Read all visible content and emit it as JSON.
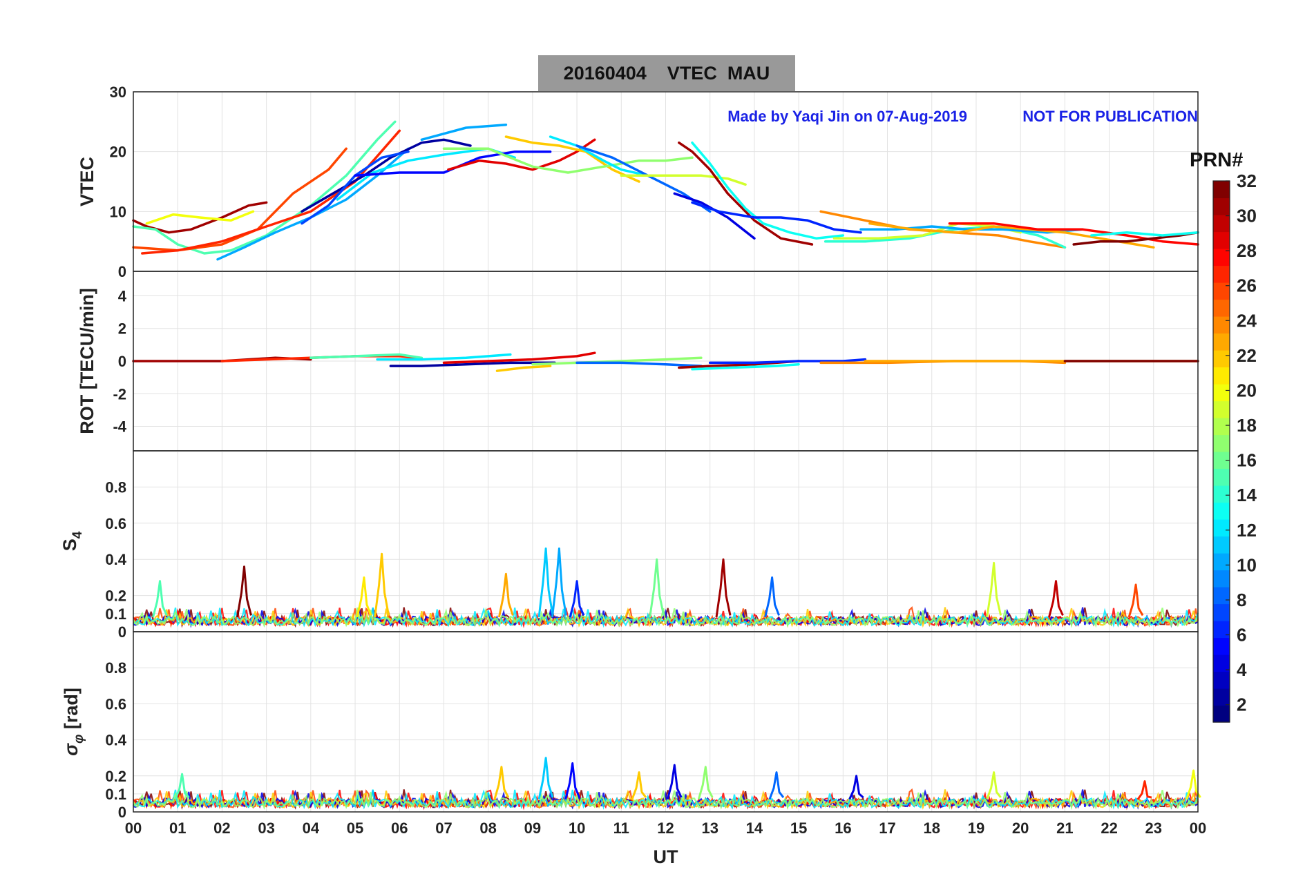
{
  "chart_data": {
    "type": "line",
    "title": "20160404    VTEC  MAU",
    "annotations": {
      "credit": "Made by Yaqi Jin on 07-Aug-2019",
      "notice": "NOT FOR PUBLICATION"
    },
    "xlabel": "UT",
    "x_ticks": [
      "00",
      "01",
      "02",
      "03",
      "04",
      "05",
      "06",
      "07",
      "08",
      "09",
      "10",
      "11",
      "12",
      "13",
      "14",
      "15",
      "16",
      "17",
      "18",
      "19",
      "20",
      "21",
      "22",
      "23",
      "00"
    ],
    "xlim": [
      0,
      24
    ],
    "grid": true,
    "colorbar": {
      "label": "PRN#",
      "range": [
        1,
        32
      ],
      "ticks": [
        "2",
        "4",
        "6",
        "8",
        "10",
        "12",
        "14",
        "16",
        "18",
        "20",
        "22",
        "24",
        "26",
        "28",
        "30",
        "32"
      ],
      "colormap": "jet"
    },
    "panels": [
      {
        "id": "vtec",
        "ylabel": "VTEC",
        "ylim": [
          0,
          30
        ],
        "yticks": [
          "0",
          "10",
          "20",
          "30"
        ],
        "series": [
          {
            "prn": 31,
            "x": [
              0.0,
              0.3,
              0.8,
              1.3,
              2.0,
              2.6,
              3.0
            ],
            "y": [
              8.5,
              7.5,
              6.5,
              7.0,
              9.0,
              11.0,
              11.5
            ]
          },
          {
            "prn": 20,
            "x": [
              0.3,
              0.9,
              1.5,
              2.2,
              2.7
            ],
            "y": [
              8.0,
              9.5,
              9.0,
              8.5,
              10.0
            ]
          },
          {
            "prn": 15,
            "x": [
              0.0,
              0.5,
              1.0,
              1.6,
              2.2,
              3.0,
              4.0,
              4.8,
              5.5,
              5.9
            ],
            "y": [
              7.5,
              7.0,
              4.5,
              3.0,
              3.5,
              6.0,
              11.0,
              16.0,
              22.0,
              25.0
            ]
          },
          {
            "prn": 26,
            "x": [
              0.0,
              1.0,
              2.0,
              2.8,
              3.6,
              4.4,
              4.8
            ],
            "y": [
              4.0,
              3.5,
              4.5,
              7.0,
              13.0,
              17.0,
              20.5
            ]
          },
          {
            "prn": 27,
            "x": [
              0.2,
              1.0,
              2.0,
              3.0,
              4.0,
              5.0,
              6.0
            ],
            "y": [
              3.0,
              3.5,
              5.0,
              7.5,
              10.0,
              15.0,
              23.5
            ]
          },
          {
            "prn": 10,
            "x": [
              1.9,
              2.5,
              3.2,
              4.0,
              4.8,
              5.5,
              6.2
            ],
            "y": [
              2.0,
              4.0,
              6.5,
              9.0,
              12.0,
              16.0,
              20.5
            ]
          },
          {
            "prn": 2,
            "x": [
              3.8,
              4.5,
              5.2,
              5.8,
              6.5,
              7.0,
              7.6
            ],
            "y": [
              10.0,
              13.0,
              16.0,
              19.0,
              21.5,
              22.0,
              21.0
            ]
          },
          {
            "prn": 7,
            "x": [
              3.8,
              4.4,
              5.0,
              5.6,
              6.2
            ],
            "y": [
              8.0,
              11.0,
              16.0,
              19.0,
              20.0
            ]
          },
          {
            "prn": 12,
            "x": [
              4.6,
              5.4,
              6.2,
              7.0,
              8.0,
              8.6
            ],
            "y": [
              12.0,
              16.5,
              18.5,
              19.5,
              20.5,
              19.0
            ]
          },
          {
            "prn": 5,
            "x": [
              5.0,
              6.0,
              7.0,
              7.8,
              8.6,
              9.4
            ],
            "y": [
              16.0,
              16.5,
              16.5,
              19.0,
              20.0,
              20.0
            ]
          },
          {
            "prn": 10,
            "x": [
              6.5,
              7.5,
              8.4
            ],
            "y": [
              22.0,
              24.0,
              24.5
            ]
          },
          {
            "prn": 29,
            "x": [
              7.1,
              7.8,
              8.4,
              9.0,
              9.6,
              10.0,
              10.4
            ],
            "y": [
              17.0,
              18.5,
              18.0,
              17.0,
              18.5,
              20.0,
              22.0
            ]
          },
          {
            "prn": 22,
            "x": [
              8.4,
              9.0,
              9.6,
              10.2,
              10.8,
              11.4
            ],
            "y": [
              22.5,
              21.5,
              21.0,
              20.0,
              17.0,
              15.0
            ]
          },
          {
            "prn": 17,
            "x": [
              7.0,
              8.0,
              9.0,
              9.8,
              10.6,
              11.4,
              12.0,
              12.6
            ],
            "y": [
              20.5,
              20.5,
              17.5,
              16.5,
              17.5,
              18.5,
              18.5,
              19.0
            ]
          },
          {
            "prn": 12,
            "x": [
              9.4,
              10.0,
              10.6,
              11.0,
              11.6
            ],
            "y": [
              22.5,
              21.0,
              18.5,
              17.0,
              16.0
            ]
          },
          {
            "prn": 8,
            "x": [
              10.0,
              10.8,
              11.6,
              12.4,
              13.0
            ],
            "y": [
              21.0,
              19.0,
              16.0,
              13.0,
              10.0
            ]
          },
          {
            "prn": 19,
            "x": [
              11.0,
              12.0,
              12.8,
              13.4,
              13.8
            ],
            "y": [
              16.0,
              16.0,
              16.0,
              15.5,
              14.5
            ]
          },
          {
            "prn": 31,
            "x": [
              12.3,
              12.6,
              13.0,
              13.4,
              14.0,
              14.6,
              15.3
            ],
            "y": [
              21.5,
              20.0,
              17.0,
              13.0,
              8.5,
              5.5,
              4.5
            ]
          },
          {
            "prn": 13,
            "x": [
              12.6,
              13.0,
              13.4,
              13.8,
              14.2,
              14.8,
              15.4,
              16.0
            ],
            "y": [
              21.5,
              18.0,
              14.0,
              10.5,
              8.0,
              6.5,
              5.5,
              6.0
            ]
          },
          {
            "prn": 4,
            "x": [
              12.2,
              12.8,
              13.4,
              14.0
            ],
            "y": [
              13.0,
              11.5,
              9.0,
              5.5
            ]
          },
          {
            "prn": 6,
            "x": [
              12.6,
              13.2,
              14.0,
              14.6,
              15.2,
              15.8,
              16.4
            ],
            "y": [
              11.5,
              10.0,
              9.0,
              9.0,
              8.5,
              7.0,
              6.5
            ]
          },
          {
            "prn": 24,
            "x": [
              15.5,
              16.5,
              17.5,
              18.5,
              19.5,
              20.2,
              21.0
            ],
            "y": [
              10.0,
              8.5,
              7.0,
              6.5,
              6.0,
              5.0,
              4.0
            ]
          },
          {
            "prn": 14,
            "x": [
              15.6,
              16.5,
              17.5,
              18.5,
              19.5,
              20.4,
              21.0
            ],
            "y": [
              5.0,
              5.0,
              5.5,
              7.0,
              7.5,
              6.0,
              4.0
            ]
          },
          {
            "prn": 19,
            "x": [
              15.8,
              16.8,
              17.8,
              18.6,
              19.4,
              20.0
            ],
            "y": [
              5.5,
              5.5,
              6.0,
              8.0,
              7.5,
              6.5
            ]
          },
          {
            "prn": 10,
            "x": [
              16.4,
              17.2,
              18.0,
              18.8,
              19.6,
              20.6,
              21.4
            ],
            "y": [
              7.0,
              7.0,
              7.5,
              7.0,
              7.0,
              6.5,
              7.0
            ]
          },
          {
            "prn": 23,
            "x": [
              16.6,
              17.6,
              18.6,
              19.4,
              20.2,
              21.0,
              21.8,
              22.6,
              23.0
            ],
            "y": [
              8.0,
              7.0,
              6.5,
              7.5,
              7.0,
              6.5,
              5.5,
              4.5,
              4.0
            ]
          },
          {
            "prn": 28,
            "x": [
              18.4,
              19.4,
              20.4,
              21.4,
              22.4,
              23.2,
              24.0
            ],
            "y": [
              8.0,
              8.0,
              7.0,
              7.0,
              6.0,
              5.0,
              4.5
            ]
          },
          {
            "prn": 32,
            "x": [
              21.2,
              21.8,
              22.4,
              23.0,
              23.6,
              24.0
            ],
            "y": [
              4.5,
              5.0,
              5.0,
              5.5,
              6.0,
              6.5
            ]
          },
          {
            "prn": 13,
            "x": [
              21.6,
              22.4,
              23.2,
              24.0
            ],
            "y": [
              6.0,
              6.5,
              6.0,
              6.5
            ]
          }
        ]
      },
      {
        "id": "rot",
        "ylabel": "ROT [TECU/min]",
        "ylim": [
          -5.5,
          5.5
        ],
        "yticks": [
          "-4",
          "-2",
          "0",
          "2",
          "4"
        ],
        "series": [
          {
            "prn": 31,
            "x": [
              0.0,
              1.0,
              2.0,
              2.6,
              3.2,
              4.0
            ],
            "y": [
              0.0,
              0.0,
              0.0,
              0.1,
              0.2,
              0.1
            ]
          },
          {
            "prn": 27,
            "x": [
              2.0,
              3.0,
              4.0,
              5.0,
              6.0,
              6.4
            ],
            "y": [
              0.0,
              0.1,
              0.2,
              0.3,
              0.3,
              0.2
            ]
          },
          {
            "prn": 15,
            "x": [
              4.0,
              5.0,
              6.0,
              6.5
            ],
            "y": [
              0.2,
              0.3,
              0.4,
              0.2
            ]
          },
          {
            "prn": 2,
            "x": [
              5.8,
              6.5,
              7.5,
              8.5,
              9.5
            ],
            "y": [
              -0.3,
              -0.3,
              -0.2,
              -0.1,
              -0.1
            ]
          },
          {
            "prn": 12,
            "x": [
              5.5,
              6.5,
              7.5,
              8.5
            ],
            "y": [
              0.1,
              0.1,
              0.2,
              0.4
            ]
          },
          {
            "prn": 29,
            "x": [
              7.0,
              8.0,
              9.0,
              10.0,
              10.4
            ],
            "y": [
              -0.1,
              0.0,
              0.1,
              0.3,
              0.5
            ]
          },
          {
            "prn": 22,
            "x": [
              8.2,
              8.8,
              9.4
            ],
            "y": [
              -0.6,
              -0.4,
              -0.3
            ]
          },
          {
            "prn": 17,
            "x": [
              9.0,
              10.0,
              11.0,
              12.0,
              12.8
            ],
            "y": [
              -0.2,
              -0.1,
              0.0,
              0.1,
              0.2
            ]
          },
          {
            "prn": 8,
            "x": [
              10.0,
              11.0,
              12.0,
              12.8
            ],
            "y": [
              -0.1,
              -0.1,
              -0.2,
              -0.3
            ]
          },
          {
            "prn": 31,
            "x": [
              12.3,
              13.0,
              14.0,
              15.0
            ],
            "y": [
              -0.4,
              -0.3,
              -0.2,
              0.0
            ]
          },
          {
            "prn": 13,
            "x": [
              12.6,
              13.5,
              14.5,
              15.0
            ],
            "y": [
              -0.5,
              -0.4,
              -0.3,
              -0.2
            ]
          },
          {
            "prn": 6,
            "x": [
              13.0,
              14.0,
              15.0,
              16.0,
              16.5
            ],
            "y": [
              -0.1,
              -0.1,
              0.0,
              0.0,
              0.1
            ]
          },
          {
            "prn": 24,
            "x": [
              15.5,
              17.0,
              18.5,
              20.0,
              21.0
            ],
            "y": [
              -0.1,
              -0.1,
              0.0,
              0.0,
              -0.1
            ]
          },
          {
            "prn": 23,
            "x": [
              16.5,
              18.0,
              19.5,
              21.0,
              22.5,
              24.0
            ],
            "y": [
              0.0,
              0.0,
              0.0,
              0.0,
              0.0,
              0.0
            ]
          },
          {
            "prn": 32,
            "x": [
              21.0,
              22.0,
              23.0,
              24.0
            ],
            "y": [
              0.0,
              0.0,
              0.0,
              0.0
            ]
          }
        ]
      },
      {
        "id": "s4",
        "ylabel": "S4",
        "ylim": [
          0,
          1
        ],
        "yticks": [
          "0",
          "0.1",
          "0.2",
          "0.4",
          "0.6",
          "0.8"
        ],
        "baseline": 0.06,
        "spikes": [
          {
            "prn": 15,
            "x": 0.6,
            "y": 0.28
          },
          {
            "prn": 32,
            "x": 2.5,
            "y": 0.36
          },
          {
            "prn": 22,
            "x": 5.6,
            "y": 0.43
          },
          {
            "prn": 21,
            "x": 5.2,
            "y": 0.3
          },
          {
            "prn": 23,
            "x": 8.4,
            "y": 0.32
          },
          {
            "prn": 11,
            "x": 9.3,
            "y": 0.46
          },
          {
            "prn": 10,
            "x": 9.6,
            "y": 0.46
          },
          {
            "prn": 6,
            "x": 10.0,
            "y": 0.28
          },
          {
            "prn": 16,
            "x": 11.8,
            "y": 0.4
          },
          {
            "prn": 31,
            "x": 13.3,
            "y": 0.4
          },
          {
            "prn": 8,
            "x": 14.4,
            "y": 0.3
          },
          {
            "prn": 19,
            "x": 19.4,
            "y": 0.38
          },
          {
            "prn": 30,
            "x": 20.8,
            "y": 0.28
          },
          {
            "prn": 26,
            "x": 22.6,
            "y": 0.26
          }
        ]
      },
      {
        "id": "sigma",
        "ylabel": "σφ [rad]",
        "ylim": [
          0,
          1
        ],
        "yticks": [
          "0",
          "0.1",
          "0.2",
          "0.4",
          "0.6",
          "0.8"
        ],
        "baseline": 0.05,
        "spikes": [
          {
            "prn": 15,
            "x": 1.1,
            "y": 0.21
          },
          {
            "prn": 22,
            "x": 8.3,
            "y": 0.25
          },
          {
            "prn": 11,
            "x": 9.3,
            "y": 0.3
          },
          {
            "prn": 5,
            "x": 9.9,
            "y": 0.27
          },
          {
            "prn": 22,
            "x": 11.4,
            "y": 0.22
          },
          {
            "prn": 4,
            "x": 12.2,
            "y": 0.26
          },
          {
            "prn": 17,
            "x": 12.9,
            "y": 0.25
          },
          {
            "prn": 8,
            "x": 14.5,
            "y": 0.22
          },
          {
            "prn": 4,
            "x": 16.3,
            "y": 0.2
          },
          {
            "prn": 19,
            "x": 19.4,
            "y": 0.22
          },
          {
            "prn": 27,
            "x": 22.8,
            "y": 0.17
          },
          {
            "prn": 20,
            "x": 23.9,
            "y": 0.23
          }
        ]
      }
    ]
  }
}
